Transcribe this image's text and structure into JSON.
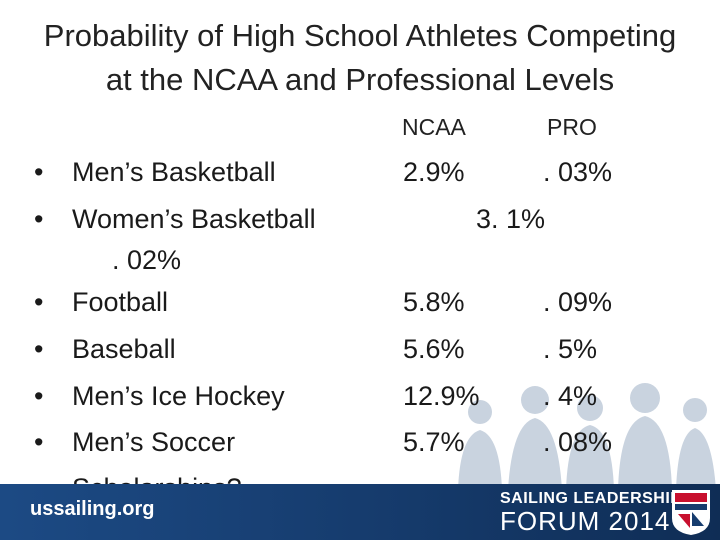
{
  "title": {
    "line1": "Probability of High School Athletes Competing",
    "line2": "at the NCAA and Professional Levels"
  },
  "columns": {
    "ncaa": "NCAA",
    "pro": "PRO"
  },
  "bullet_glyph": "•",
  "rows": [
    {
      "label": "Men’s Basketball",
      "ncaa": "2.9%",
      "pro": ". 03%"
    },
    {
      "label": "Women’s Basketball",
      "ncaa": "3. 1%",
      "pro_continued": ". 02%"
    },
    {
      "label": "Football",
      "ncaa": "5.8%",
      "pro": ". 09%"
    },
    {
      "label": "Baseball",
      "ncaa": "5.6%",
      "pro": ". 5%"
    },
    {
      "label": "Men’s Ice Hockey",
      "ncaa": "12.9%",
      "pro": ". 4%"
    },
    {
      "label": "Men’s Soccer",
      "ncaa": "5.7%",
      "pro": ". 08%"
    },
    {
      "label": "Scholarships?"
    }
  ],
  "footer": {
    "url": "ussailing.org",
    "event_line1": "SAILING LEADERSHIP",
    "event_line2": "FORUM 2014",
    "logo_text": "US SAILING",
    "color": "#163c6e"
  }
}
